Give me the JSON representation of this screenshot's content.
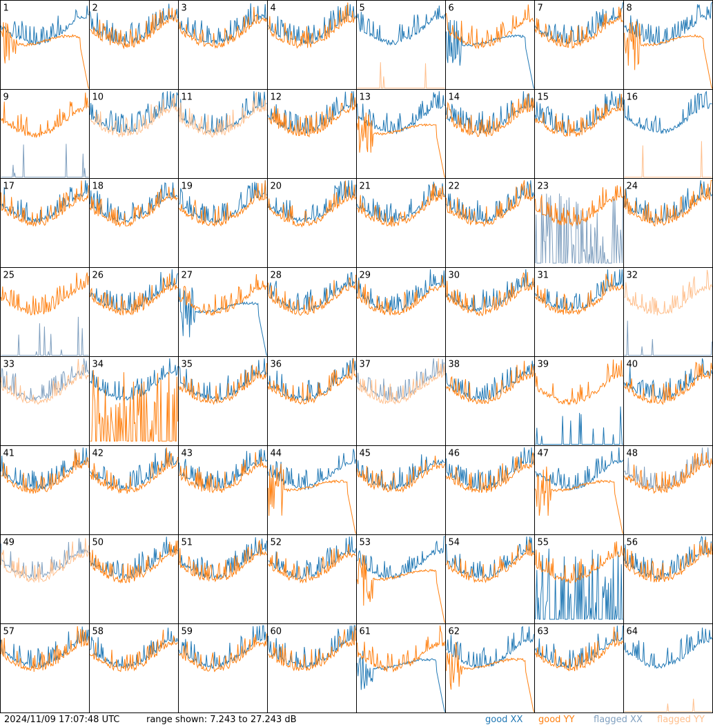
{
  "footer": {
    "timestamp": "2024/11/09 17:07:48 UTC",
    "range_text": "range shown: 7.243 to 27.243 dB"
  },
  "legend": {
    "good_xx": "good XX",
    "good_yy": "good YY",
    "flagged_xx": "flagged XX",
    "flagged_yy": "flagged YY"
  },
  "colors": {
    "good_xx": "#1f77b4",
    "good_yy": "#ff7f0e",
    "flagged_xx": "#7f9fbf",
    "flagged_yy": "#ffbf8c"
  },
  "chart_data": {
    "type": "line",
    "layout": "8x8 small-multiples grid of spectra",
    "ylim": [
      7.243,
      27.243
    ],
    "y_unit": "dB",
    "grid": false,
    "panels": [
      {
        "id": "1",
        "xx": "good",
        "yy": "good",
        "yy_shape": "droop"
      },
      {
        "id": "2",
        "xx": "good",
        "yy": "good"
      },
      {
        "id": "3",
        "xx": "good",
        "yy": "good"
      },
      {
        "id": "4",
        "xx": "good",
        "yy": "good"
      },
      {
        "id": "5",
        "xx": "good",
        "yy": "flagged",
        "yy_shape": "dead"
      },
      {
        "id": "6",
        "xx": "good",
        "yy": "good",
        "xx_shape": "droop"
      },
      {
        "id": "7",
        "xx": "good",
        "yy": "good"
      },
      {
        "id": "8",
        "xx": "good",
        "yy": "good",
        "yy_shape": "droop"
      },
      {
        "id": "9",
        "xx": "flagged",
        "yy": "good",
        "xx_shape": "dead"
      },
      {
        "id": "10",
        "xx": "good",
        "yy": "flagged"
      },
      {
        "id": "11",
        "xx": "good",
        "yy": "flagged"
      },
      {
        "id": "12",
        "xx": "good",
        "yy": "good"
      },
      {
        "id": "13",
        "xx": "good",
        "yy": "good",
        "yy_shape": "droop"
      },
      {
        "id": "14",
        "xx": "good",
        "yy": "good"
      },
      {
        "id": "15",
        "xx": "good",
        "yy": "good"
      },
      {
        "id": "16",
        "xx": "good",
        "yy": "flagged",
        "yy_shape": "dead"
      },
      {
        "id": "17",
        "xx": "good",
        "yy": "good"
      },
      {
        "id": "18",
        "xx": "good",
        "yy": "good"
      },
      {
        "id": "19",
        "xx": "good",
        "yy": "good"
      },
      {
        "id": "20",
        "xx": "good",
        "yy": "good"
      },
      {
        "id": "21",
        "xx": "good",
        "yy": "good"
      },
      {
        "id": "22",
        "xx": "good",
        "yy": "good"
      },
      {
        "id": "23",
        "xx": "flagged",
        "yy": "good",
        "xx_shape": "noisy"
      },
      {
        "id": "24",
        "xx": "good",
        "yy": "good"
      },
      {
        "id": "25",
        "xx": "flagged",
        "yy": "good",
        "xx_shape": "dead"
      },
      {
        "id": "26",
        "xx": "good",
        "yy": "good"
      },
      {
        "id": "27",
        "xx": "good",
        "yy": "good",
        "xx_shape": "droop"
      },
      {
        "id": "28",
        "xx": "good",
        "yy": "good"
      },
      {
        "id": "29",
        "xx": "good",
        "yy": "good"
      },
      {
        "id": "30",
        "xx": "good",
        "yy": "good"
      },
      {
        "id": "31",
        "xx": "good",
        "yy": "good"
      },
      {
        "id": "32",
        "xx": "flagged",
        "yy": "flagged",
        "xx_shape": "dead"
      },
      {
        "id": "33",
        "xx": "flagged",
        "yy": "flagged"
      },
      {
        "id": "34",
        "xx": "good",
        "yy": "good",
        "yy_shape": "noisy"
      },
      {
        "id": "35",
        "xx": "good",
        "yy": "good"
      },
      {
        "id": "36",
        "xx": "good",
        "yy": "good"
      },
      {
        "id": "37",
        "xx": "flagged",
        "yy": "flagged"
      },
      {
        "id": "38",
        "xx": "good",
        "yy": "good"
      },
      {
        "id": "39",
        "xx": "good",
        "yy": "good",
        "xx_shape": "dead"
      },
      {
        "id": "40",
        "xx": "good",
        "yy": "good"
      },
      {
        "id": "41",
        "xx": "good",
        "yy": "good"
      },
      {
        "id": "42",
        "xx": "good",
        "yy": "good"
      },
      {
        "id": "43",
        "xx": "good",
        "yy": "good"
      },
      {
        "id": "44",
        "xx": "good",
        "yy": "good",
        "yy_shape": "droop"
      },
      {
        "id": "45",
        "xx": "good",
        "yy": "good"
      },
      {
        "id": "46",
        "xx": "good",
        "yy": "good"
      },
      {
        "id": "47",
        "xx": "good",
        "yy": "good",
        "yy_shape": "droop"
      },
      {
        "id": "48",
        "xx": "flagged",
        "yy": "good"
      },
      {
        "id": "49",
        "xx": "flagged",
        "yy": "flagged"
      },
      {
        "id": "50",
        "xx": "good",
        "yy": "good"
      },
      {
        "id": "51",
        "xx": "good",
        "yy": "good"
      },
      {
        "id": "52",
        "xx": "good",
        "yy": "good"
      },
      {
        "id": "53",
        "xx": "good",
        "yy": "good",
        "yy_shape": "droop"
      },
      {
        "id": "54",
        "xx": "good",
        "yy": "good"
      },
      {
        "id": "55",
        "xx": "good",
        "yy": "good",
        "xx_shape": "noisy"
      },
      {
        "id": "56",
        "xx": "good",
        "yy": "good"
      },
      {
        "id": "57",
        "xx": "good",
        "yy": "good"
      },
      {
        "id": "58",
        "xx": "good",
        "yy": "good"
      },
      {
        "id": "59",
        "xx": "good",
        "yy": "good"
      },
      {
        "id": "60",
        "xx": "good",
        "yy": "good"
      },
      {
        "id": "61",
        "xx": "good",
        "yy": "good",
        "xx_shape": "droop"
      },
      {
        "id": "62",
        "xx": "good",
        "yy": "good",
        "yy_shape": "droop"
      },
      {
        "id": "63",
        "xx": "good",
        "yy": "good"
      },
      {
        "id": "64",
        "xx": "good",
        "yy": "flagged",
        "yy_shape": "dead"
      }
    ]
  }
}
